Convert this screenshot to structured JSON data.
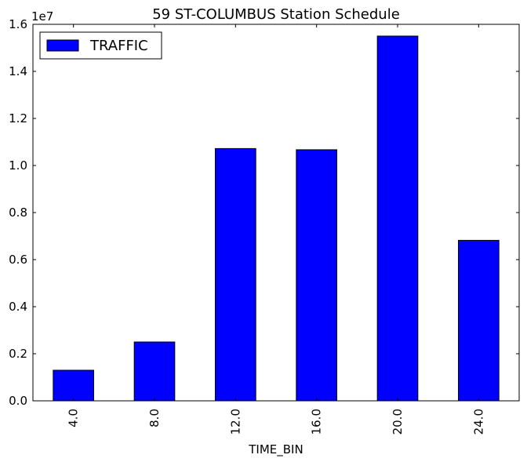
{
  "chart_data": {
    "type": "bar",
    "title": "59 ST-COLUMBUS Station Schedule",
    "xlabel": "TIME_BIN",
    "ylabel": "",
    "categories": [
      "4.0",
      "8.0",
      "12.0",
      "16.0",
      "20.0",
      "24.0"
    ],
    "series": [
      {
        "name": "TRAFFIC",
        "values": [
          1300000,
          2500000,
          10720000,
          10670000,
          15500000,
          6820000
        ],
        "color": "#0000ff"
      }
    ],
    "ylim": [
      0,
      16000000
    ],
    "yticks": [
      0,
      2000000,
      4000000,
      6000000,
      8000000,
      10000000,
      12000000,
      14000000,
      16000000
    ],
    "ytick_labels": [
      "0.0",
      "0.2",
      "0.4",
      "0.6",
      "0.8",
      "1.0",
      "1.2",
      "1.4",
      "1.6"
    ],
    "y_offset_text": "1e7",
    "grid": false,
    "legend_position": "top-left"
  }
}
